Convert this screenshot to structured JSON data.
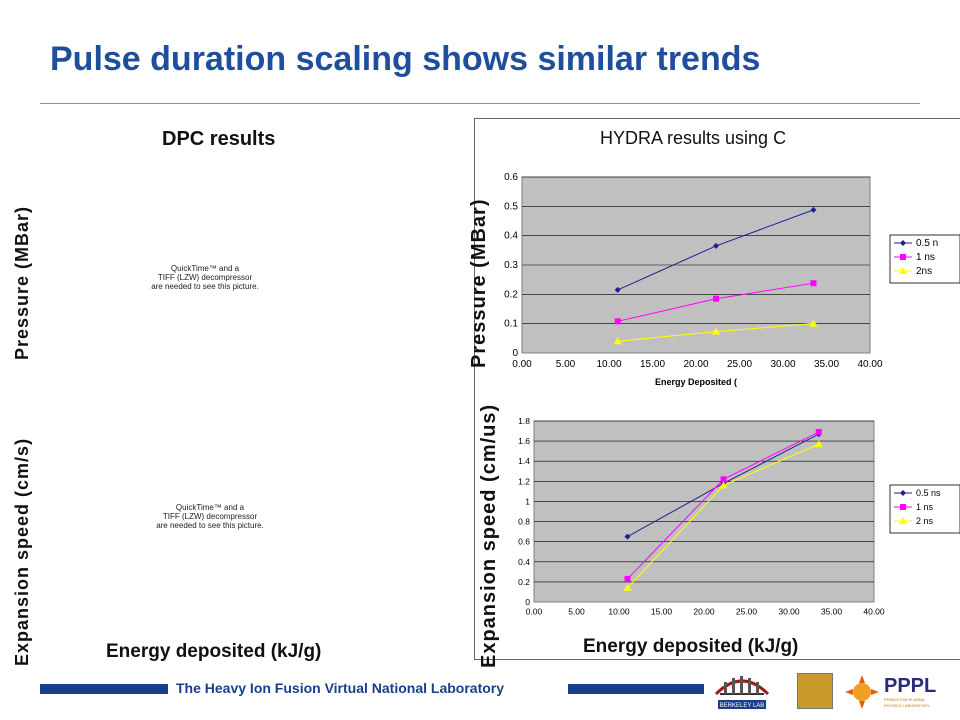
{
  "slide": {
    "title": "Pulse duration scaling shows similar trends",
    "footer": "The Heavy Ion Fusion Virtual National Laboratory"
  },
  "dpc": {
    "title": "DPC results",
    "ylabel_top": "Pressure (MBar)",
    "ylabel_bottom": "Expansion speed (cm/s)",
    "xlabel": "Energy deposited (kJ/g)",
    "placeholder_top": "QuickTime™ and a\nTIFF (LZW) decompressor\nare needed to see this picture.",
    "placeholder_bottom": "QuickTime™ and a\nTIFF (LZW) decompressor\nare needed to see this picture."
  },
  "hydra": {
    "title": "HYDRA results using C",
    "ylabel_top": "Pressure (MBar)",
    "ylabel_bottom": "Expansion speed (cm/us)",
    "xlabel": "Energy deposited (kJ/g)"
  },
  "logos": {
    "lbl": "BERKELEY LAB",
    "pppl": "PPPL",
    "pppl_sub": "PRINCETON PLASMA PHYSICS LABORATORY"
  },
  "chart_data": [
    {
      "type": "line",
      "title": "HYDRA results using C",
      "xlabel": "Energy Deposited (",
      "ylabel": "",
      "xlim": [
        0,
        40
      ],
      "ylim": [
        0,
        0.6
      ],
      "xticks": [
        "0.00",
        "5.00",
        "10.00",
        "15.00",
        "20.00",
        "25.00",
        "30.00",
        "35.00",
        "40.00"
      ],
      "yticks": [
        "0",
        "0.1",
        "0.2",
        "0.3",
        "0.4",
        "0.5",
        "0.6"
      ],
      "grid": true,
      "legend": "right",
      "series": [
        {
          "name": "0.5 n",
          "color": "#1f1f8f",
          "marker": "diamond",
          "x": [
            11.0,
            22.3,
            33.5
          ],
          "y": [
            0.215,
            0.365,
            0.488
          ]
        },
        {
          "name": "1 ns",
          "color": "#ff00ff",
          "marker": "square",
          "x": [
            11.0,
            22.3,
            33.5
          ],
          "y": [
            0.108,
            0.185,
            0.238
          ]
        },
        {
          "name": "2ns",
          "color": "#ffff00",
          "marker": "triangle",
          "x": [
            11.0,
            22.3,
            33.5
          ],
          "y": [
            0.04,
            0.073,
            0.1
          ]
        }
      ]
    },
    {
      "type": "line",
      "title": "",
      "xlabel": "",
      "ylabel": "",
      "xlim": [
        0,
        40
      ],
      "ylim": [
        0,
        1.8
      ],
      "xticks": [
        "0.00",
        "5.00",
        "10.00",
        "15.00",
        "20.00",
        "25.00",
        "30.00",
        "35.00",
        "40.00"
      ],
      "yticks": [
        "0",
        "0.2",
        "0.4",
        "0.6",
        "0.8",
        "1",
        "1.2",
        "1.4",
        "1.6",
        "1.8"
      ],
      "grid": true,
      "legend": "right",
      "series": [
        {
          "name": "0.5 ns",
          "color": "#1f1f8f",
          "marker": "diamond",
          "x": [
            11.0,
            22.3,
            33.5
          ],
          "y": [
            0.65,
            1.18,
            1.67
          ]
        },
        {
          "name": "1 ns",
          "color": "#ff00ff",
          "marker": "square",
          "x": [
            11.0,
            22.3,
            33.5
          ],
          "y": [
            0.23,
            1.22,
            1.69
          ]
        },
        {
          "name": "2 ns",
          "color": "#ffff00",
          "marker": "triangle",
          "x": [
            11.0,
            22.3,
            33.5
          ],
          "y": [
            0.14,
            1.16,
            1.57
          ]
        }
      ]
    }
  ]
}
